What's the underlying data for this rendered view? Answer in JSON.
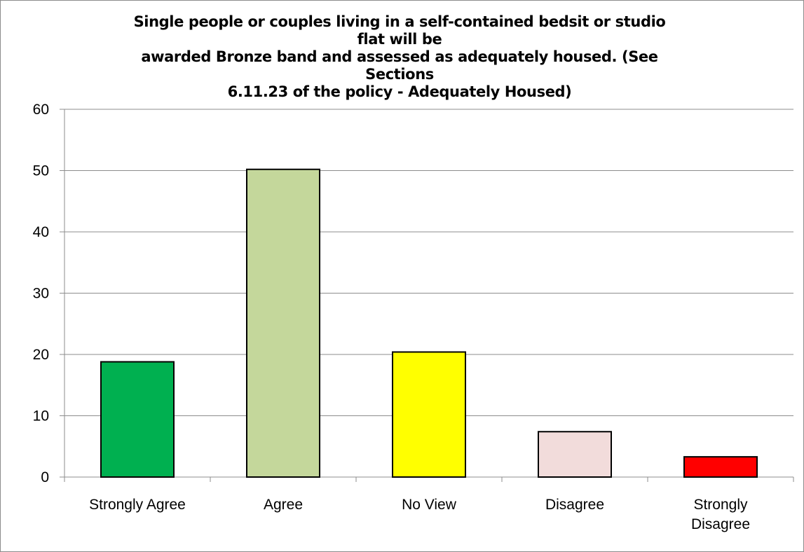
{
  "chart_data": {
    "type": "bar",
    "title_lines": [
      "Single people or couples living in a self-contained bedsit or studio flat will be",
      "awarded Bronze band and assessed as adequately housed. (See Sections",
      "6.11.23 of the policy -  Adequately Housed)"
    ],
    "categories": [
      [
        "Strongly Agree"
      ],
      [
        "Agree"
      ],
      [
        "No View"
      ],
      [
        "Disagree"
      ],
      [
        "Strongly",
        "Disagree"
      ]
    ],
    "values": [
      18.8,
      50.2,
      20.4,
      7.4,
      3.3
    ],
    "colors": [
      "#00b050",
      "#c4d79b",
      "#ffff00",
      "#f2dcdb",
      "#ff0000"
    ],
    "ylim": [
      0,
      60
    ],
    "yticks": [
      0,
      10,
      20,
      30,
      40,
      50,
      60
    ],
    "grid": true,
    "legend": "none"
  }
}
